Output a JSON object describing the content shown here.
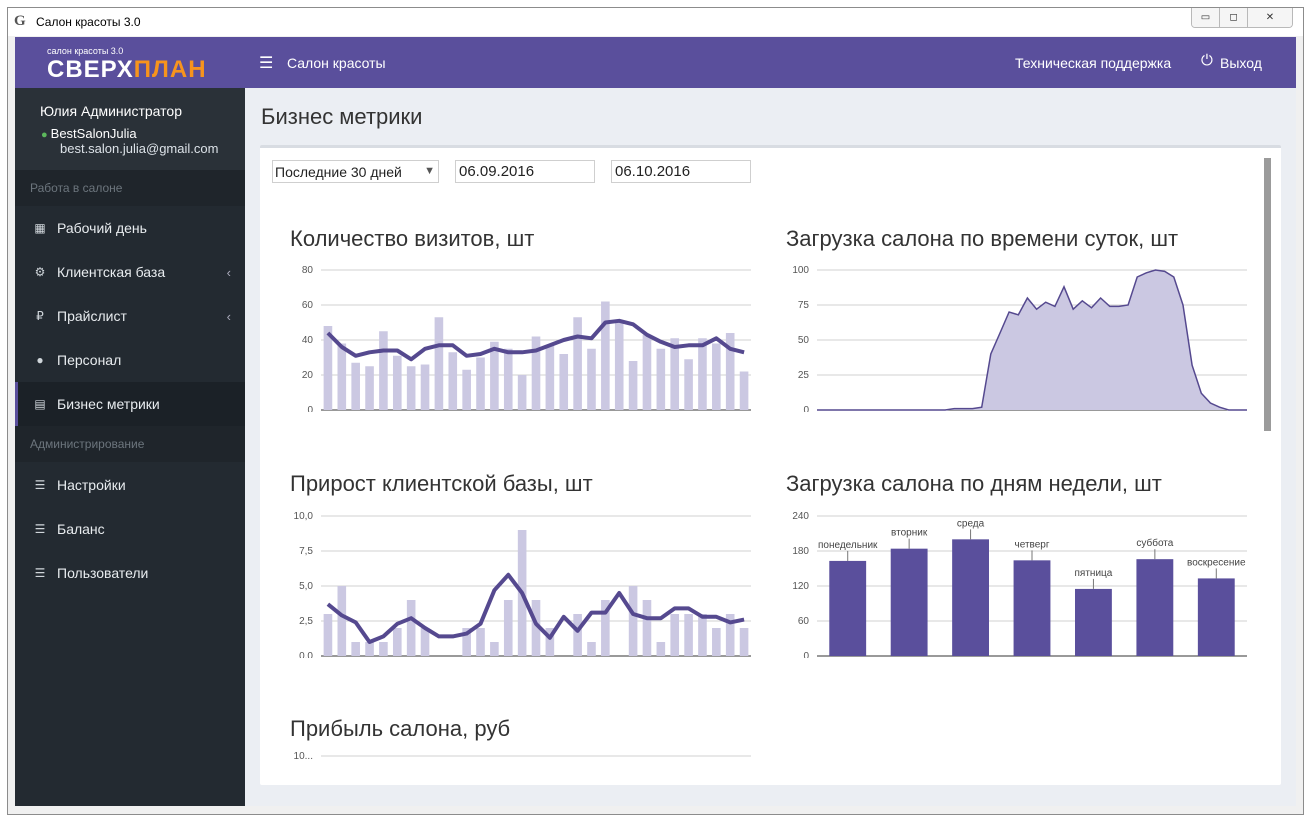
{
  "window": {
    "title": "Салон красоты 3.0",
    "icon": "app-logo-icon",
    "buttons": {
      "minimize": "▭",
      "maximize": "◻",
      "close": "✕"
    }
  },
  "sidebar": {
    "logo_small": "салон красоты 3.0",
    "logo_part1": "СВЕРХ",
    "logo_part2": "ПЛАН",
    "user_name": "Юлия Администратор",
    "user_login": "BestSalonJulia",
    "user_email": "best.salon.julia@gmail.com",
    "section_salon": "Работа в салоне",
    "section_admin": "Администрирование",
    "items": [
      {
        "label": "Рабочий день",
        "icon": "calendar-grid-icon"
      },
      {
        "label": "Клиентская база",
        "icon": "gears-icon"
      },
      {
        "label": "Прайслист",
        "icon": "ruble-icon"
      },
      {
        "label": "Персонал",
        "icon": "person-icon"
      },
      {
        "label": "Бизнес метрики",
        "icon": "bar-chart-icon"
      },
      {
        "label": "Настройки",
        "icon": "list-icon"
      },
      {
        "label": "Баланс",
        "icon": "list-icon"
      },
      {
        "label": "Пользователи",
        "icon": "list-icon"
      }
    ]
  },
  "topbar": {
    "crumb": "Салон красоты",
    "support": "Техническая поддержка",
    "logout": "Выход"
  },
  "page": {
    "title": "Бизнес метрики",
    "period": "Последние 30 дней",
    "date_from": "06.09.2016",
    "date_to": "06.10.2016"
  },
  "colors": {
    "accent": "#5a4f9c",
    "bar_light": "#cbc8e2",
    "line": "#55498f",
    "area": "#cbc8e2"
  },
  "chart_data": [
    {
      "id": "visits",
      "type": "bar",
      "title": "Количество визитов, шт",
      "ylim": [
        0,
        80
      ],
      "ticks": [
        "0",
        "20",
        "40",
        "60",
        "80"
      ],
      "tick_values": [
        0,
        20,
        40,
        60,
        80
      ],
      "series": [
        {
          "type": "bar",
          "values": [
            48,
            38,
            27,
            25,
            45,
            31,
            25,
            26,
            53,
            33,
            23,
            30,
            39,
            35,
            20,
            42,
            37,
            32,
            53,
            35,
            62,
            51,
            28,
            43,
            35,
            41,
            29,
            41,
            38,
            44,
            22
          ]
        },
        {
          "type": "line",
          "values": [
            44,
            36,
            31,
            33,
            34,
            34,
            29,
            35,
            37,
            37,
            31,
            32,
            35,
            33,
            33,
            34,
            37,
            40,
            42,
            41,
            50,
            51,
            49,
            43,
            39,
            36,
            37,
            37,
            41,
            35,
            33
          ]
        }
      ]
    },
    {
      "id": "hours",
      "type": "area",
      "title": "Загрузка салона по времени суток, шт",
      "ylim": [
        0,
        100
      ],
      "ticks": [
        "0",
        "25",
        "50",
        "75",
        "100"
      ],
      "tick_values": [
        0,
        25,
        50,
        75,
        100
      ],
      "x": [
        0,
        1,
        2,
        3,
        4,
        5,
        6,
        7,
        8,
        9,
        10,
        11,
        12,
        13,
        14,
        15,
        16,
        17,
        18,
        19,
        20,
        21,
        22,
        23,
        24,
        25,
        26,
        27,
        28,
        29,
        30,
        31,
        32,
        33,
        34,
        35,
        36,
        37,
        38,
        39,
        40,
        41,
        42,
        43,
        44,
        45,
        46,
        47
      ],
      "values": [
        0,
        0,
        0,
        0,
        0,
        0,
        0,
        0,
        0,
        0,
        0,
        0,
        0,
        0,
        0,
        1,
        1,
        1,
        2,
        40,
        55,
        70,
        68,
        80,
        72,
        77,
        74,
        88,
        72,
        78,
        73,
        80,
        74,
        74,
        75,
        95,
        98,
        100,
        99,
        95,
        75,
        32,
        12,
        5,
        2,
        0,
        0,
        0
      ]
    },
    {
      "id": "growth",
      "type": "bar",
      "title": "Прирост клиентской базы, шт",
      "ylim": [
        0,
        10
      ],
      "ticks": [
        "0,0",
        "2,5",
        "5,0",
        "7,5",
        "10,0"
      ],
      "tick_values": [
        0,
        2.5,
        5,
        7.5,
        10
      ],
      "series": [
        {
          "type": "bar",
          "values": [
            3,
            5,
            1,
            1,
            1,
            2,
            4,
            2,
            0,
            0,
            2,
            2,
            1,
            4,
            9,
            4,
            2,
            0,
            3,
            1,
            4,
            0,
            5,
            4,
            1,
            3,
            3,
            3,
            2,
            3,
            2
          ]
        },
        {
          "type": "line",
          "values": [
            3.7,
            2.9,
            2.4,
            1.0,
            1.4,
            2.3,
            2.7,
            2.0,
            1.4,
            1.4,
            1.6,
            2.3,
            4.7,
            5.8,
            4.5,
            2.3,
            1.3,
            2.8,
            1.8,
            3.1,
            3.1,
            4.5,
            3.0,
            2.7,
            2.7,
            3.4,
            3.4,
            2.8,
            2.8,
            2.4,
            2.6
          ]
        }
      ]
    },
    {
      "id": "weekdays",
      "type": "bar",
      "title": "Загрузка салона по дням недели, шт",
      "ylim": [
        0,
        240
      ],
      "ticks": [
        "0",
        "60",
        "120",
        "180",
        "240"
      ],
      "tick_values": [
        0,
        60,
        120,
        180,
        240
      ],
      "categories": [
        "понедельник",
        "вторник",
        "среда",
        "четверг",
        "пятница",
        "суббота",
        "воскресение"
      ],
      "values": [
        163,
        184,
        200,
        164,
        115,
        166,
        133
      ]
    },
    {
      "id": "profit",
      "type": "line",
      "title": "Прибыль салона, руб",
      "ticks": [
        "10..."
      ]
    }
  ]
}
